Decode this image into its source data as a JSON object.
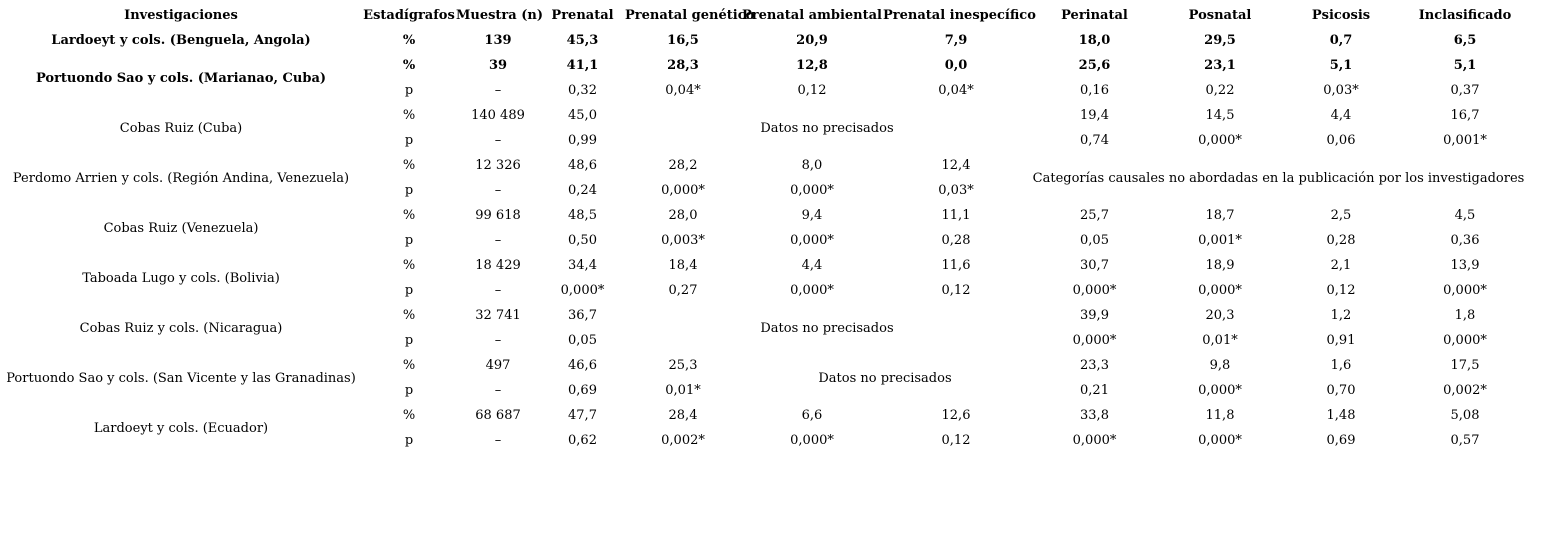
{
  "table": {
    "columns": [
      "Investigaciones",
      "Estadígrafos",
      "Muestra (n)",
      "Prenatal",
      "Prenatal genético",
      "Prenatal ambiental",
      "Prenatal inespecífico",
      "Perinatal",
      "Posnatal",
      "Psicosis",
      "Inclasificado"
    ],
    "rows": [
      {
        "cells": [
          {
            "t": "Lardoeyt y cols. (Benguela, Angola)",
            "b": true,
            "n": "study-name-cell"
          },
          {
            "t": "%",
            "b": true
          },
          {
            "t": "139",
            "b": true
          },
          {
            "t": "45,3",
            "b": true
          },
          {
            "t": "16,5",
            "b": true
          },
          {
            "t": "20,9",
            "b": true
          },
          {
            "t": "7,9",
            "b": true
          },
          {
            "t": "18,0",
            "b": true
          },
          {
            "t": "29,5",
            "b": true
          },
          {
            "t": "0,7",
            "b": true
          },
          {
            "t": "6,5",
            "b": true
          }
        ]
      },
      {
        "cells": [
          {
            "t": "Portuondo Sao y cols. (Marianao, Cuba)",
            "b": true,
            "rs": 2,
            "n": "study-name-cell"
          },
          {
            "t": "%",
            "b": true
          },
          {
            "t": "39",
            "b": true
          },
          {
            "t": "41,1",
            "b": true
          },
          {
            "t": "28,3",
            "b": true
          },
          {
            "t": "12,8",
            "b": true
          },
          {
            "t": "0,0",
            "b": true
          },
          {
            "t": "25,6",
            "b": true
          },
          {
            "t": "23,1",
            "b": true
          },
          {
            "t": "5,1",
            "b": true
          },
          {
            "t": "5,1",
            "b": true
          }
        ]
      },
      {
        "cells": [
          {
            "t": "p"
          },
          {
            "t": "–"
          },
          {
            "t": "0,32"
          },
          {
            "t": "0,04*"
          },
          {
            "t": "0,12"
          },
          {
            "t": "0,04*"
          },
          {
            "t": "0,16"
          },
          {
            "t": "0,22"
          },
          {
            "t": "0,03*"
          },
          {
            "t": "0,37"
          }
        ]
      },
      {
        "cells": [
          {
            "t": "Cobas Ruiz (Cuba)",
            "rs": 2,
            "n": "study-name-cell"
          },
          {
            "t": "%"
          },
          {
            "t": "140 489"
          },
          {
            "t": "45,0"
          },
          {
            "t": "Datos no precisados",
            "cs": 3,
            "rs": 2,
            "n": "merged-note-cell"
          },
          {
            "t": "19,4"
          },
          {
            "t": "14,5"
          },
          {
            "t": "4,4"
          },
          {
            "t": "16,7"
          }
        ]
      },
      {
        "cells": [
          {
            "t": "p"
          },
          {
            "t": "–"
          },
          {
            "t": "0,99"
          },
          {
            "t": "0,74"
          },
          {
            "t": "0,000*"
          },
          {
            "t": "0,06"
          },
          {
            "t": "0,001*"
          }
        ]
      },
      {
        "cells": [
          {
            "t": "Perdomo Arrien y cols. (Región Andina, Venezuela)",
            "rs": 2,
            "n": "study-name-cell"
          },
          {
            "t": "%"
          },
          {
            "t": "12 326"
          },
          {
            "t": "48,6"
          },
          {
            "t": "28,2"
          },
          {
            "t": "8,0"
          },
          {
            "t": "12,4"
          },
          {
            "t": "Categorías causales no abordadas en la publicación por los investigadores",
            "cs": 4,
            "rs": 2,
            "n": "merged-note-cell"
          }
        ]
      },
      {
        "cells": [
          {
            "t": "p"
          },
          {
            "t": "–"
          },
          {
            "t": "0,24"
          },
          {
            "t": "0,000*"
          },
          {
            "t": "0,000*"
          },
          {
            "t": "0,03*"
          }
        ]
      },
      {
        "cells": [
          {
            "t": "Cobas Ruiz (Venezuela)",
            "rs": 2,
            "n": "study-name-cell"
          },
          {
            "t": "%"
          },
          {
            "t": "99 618"
          },
          {
            "t": "48,5"
          },
          {
            "t": "28,0"
          },
          {
            "t": "9,4"
          },
          {
            "t": "11,1"
          },
          {
            "t": "25,7"
          },
          {
            "t": "18,7"
          },
          {
            "t": "2,5"
          },
          {
            "t": "4,5"
          }
        ]
      },
      {
        "cells": [
          {
            "t": "p"
          },
          {
            "t": "–"
          },
          {
            "t": "0,50"
          },
          {
            "t": "0,003*"
          },
          {
            "t": "0,000*"
          },
          {
            "t": "0,28"
          },
          {
            "t": "0,05"
          },
          {
            "t": "0,001*"
          },
          {
            "t": "0,28"
          },
          {
            "t": "0,36"
          }
        ]
      },
      {
        "cells": [
          {
            "t": "Taboada Lugo y cols. (Bolivia)",
            "rs": 2,
            "n": "study-name-cell"
          },
          {
            "t": "%"
          },
          {
            "t": "18 429"
          },
          {
            "t": "34,4"
          },
          {
            "t": "18,4"
          },
          {
            "t": "4,4"
          },
          {
            "t": "11,6"
          },
          {
            "t": "30,7"
          },
          {
            "t": "18,9"
          },
          {
            "t": "2,1"
          },
          {
            "t": "13,9"
          }
        ]
      },
      {
        "cells": [
          {
            "t": "p"
          },
          {
            "t": "–"
          },
          {
            "t": "0,000*"
          },
          {
            "t": "0,27"
          },
          {
            "t": "0,000*"
          },
          {
            "t": "0,12"
          },
          {
            "t": "0,000*"
          },
          {
            "t": "0,000*"
          },
          {
            "t": "0,12"
          },
          {
            "t": "0,000*"
          }
        ]
      },
      {
        "cells": [
          {
            "t": "Cobas Ruiz y cols. (Nicaragua)",
            "rs": 2,
            "n": "study-name-cell"
          },
          {
            "t": "%"
          },
          {
            "t": "32 741"
          },
          {
            "t": "36,7"
          },
          {
            "t": "Datos no precisados",
            "cs": 3,
            "rs": 2,
            "n": "merged-note-cell"
          },
          {
            "t": "39,9"
          },
          {
            "t": "20,3"
          },
          {
            "t": "1,2"
          },
          {
            "t": "1,8"
          }
        ]
      },
      {
        "cells": [
          {
            "t": "p"
          },
          {
            "t": "–"
          },
          {
            "t": "0,05"
          },
          {
            "t": "0,000*"
          },
          {
            "t": "0,01*"
          },
          {
            "t": "0,91"
          },
          {
            "t": "0,000*"
          }
        ]
      },
      {
        "cells": [
          {
            "t": "Portuondo Sao y cols. (San Vicente y las Granadinas)",
            "rs": 2,
            "n": "study-name-cell"
          },
          {
            "t": "%"
          },
          {
            "t": "497"
          },
          {
            "t": "46,6"
          },
          {
            "t": "25,3"
          },
          {
            "t": "Datos no precisados",
            "cs": 2,
            "rs": 2,
            "n": "merged-note-cell"
          },
          {
            "t": "23,3"
          },
          {
            "t": "9,8"
          },
          {
            "t": "1,6"
          },
          {
            "t": "17,5"
          }
        ]
      },
      {
        "cells": [
          {
            "t": "p"
          },
          {
            "t": "–"
          },
          {
            "t": "0,69"
          },
          {
            "t": "0,01*"
          },
          {
            "t": "0,21"
          },
          {
            "t": "0,000*"
          },
          {
            "t": "0,70"
          },
          {
            "t": "0,002*"
          }
        ]
      },
      {
        "cells": [
          {
            "t": "Lardoeyt y cols. (Ecuador)",
            "rs": 2,
            "n": "study-name-cell"
          },
          {
            "t": "%"
          },
          {
            "t": "68 687"
          },
          {
            "t": "47,7"
          },
          {
            "t": "28,4"
          },
          {
            "t": "6,6"
          },
          {
            "t": "12,6"
          },
          {
            "t": "33,8"
          },
          {
            "t": "11,8"
          },
          {
            "t": "1,48"
          },
          {
            "t": "5,08"
          }
        ]
      },
      {
        "cells": [
          {
            "t": "p"
          },
          {
            "t": "–"
          },
          {
            "t": "0,62"
          },
          {
            "t": "0,002*"
          },
          {
            "t": "0,000*"
          },
          {
            "t": "0,12"
          },
          {
            "t": "0,000*"
          },
          {
            "t": "0,000*"
          },
          {
            "t": "0,69"
          },
          {
            "t": "0,57"
          }
        ]
      }
    ]
  }
}
